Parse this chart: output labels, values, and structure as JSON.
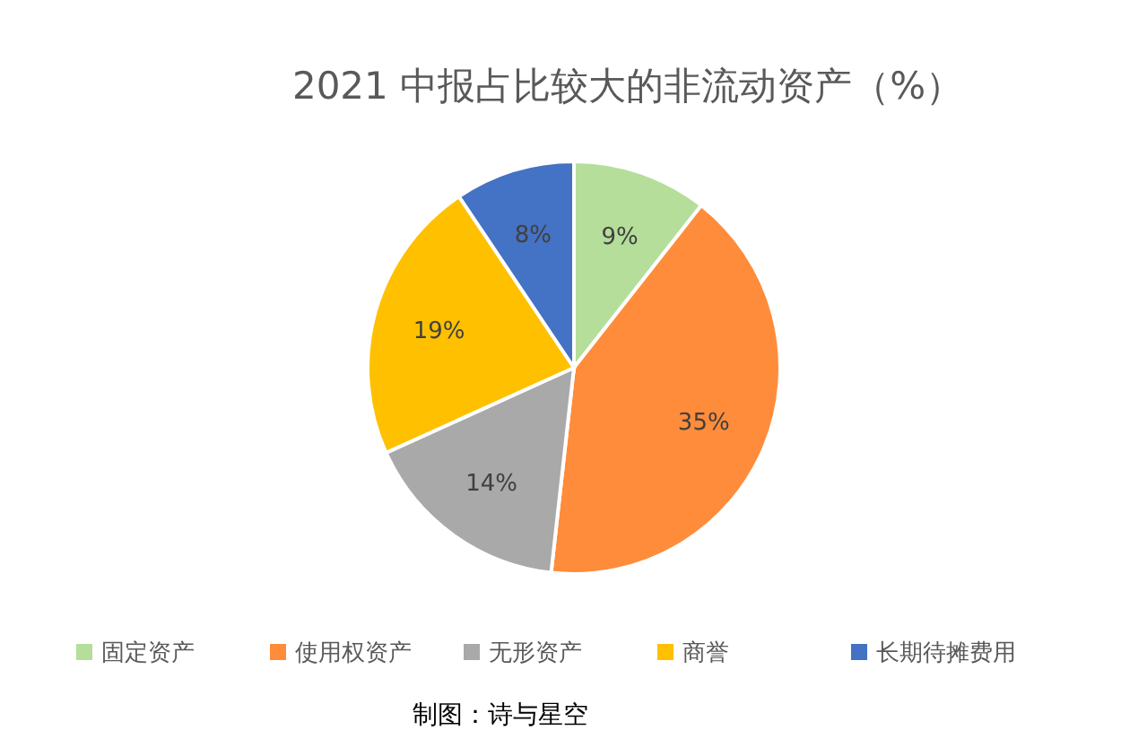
{
  "chart_data": {
    "type": "pie",
    "title": "2021 中报占比较大的非流动资产（%）",
    "categories": [
      "固定资产",
      "使用权资产",
      "无形资产",
      "商誉",
      "长期待摊费用"
    ],
    "values": [
      9,
      35,
      14,
      19,
      8
    ],
    "colors": [
      "#b4de99",
      "#ff8c3a",
      "#a9a9a9",
      "#ffc000",
      "#4472c4"
    ],
    "value_labels": [
      "9%",
      "35%",
      "14%",
      "19%",
      "8%"
    ],
    "legend": "bottom",
    "annotations": [
      "制图：诗与星空"
    ]
  }
}
